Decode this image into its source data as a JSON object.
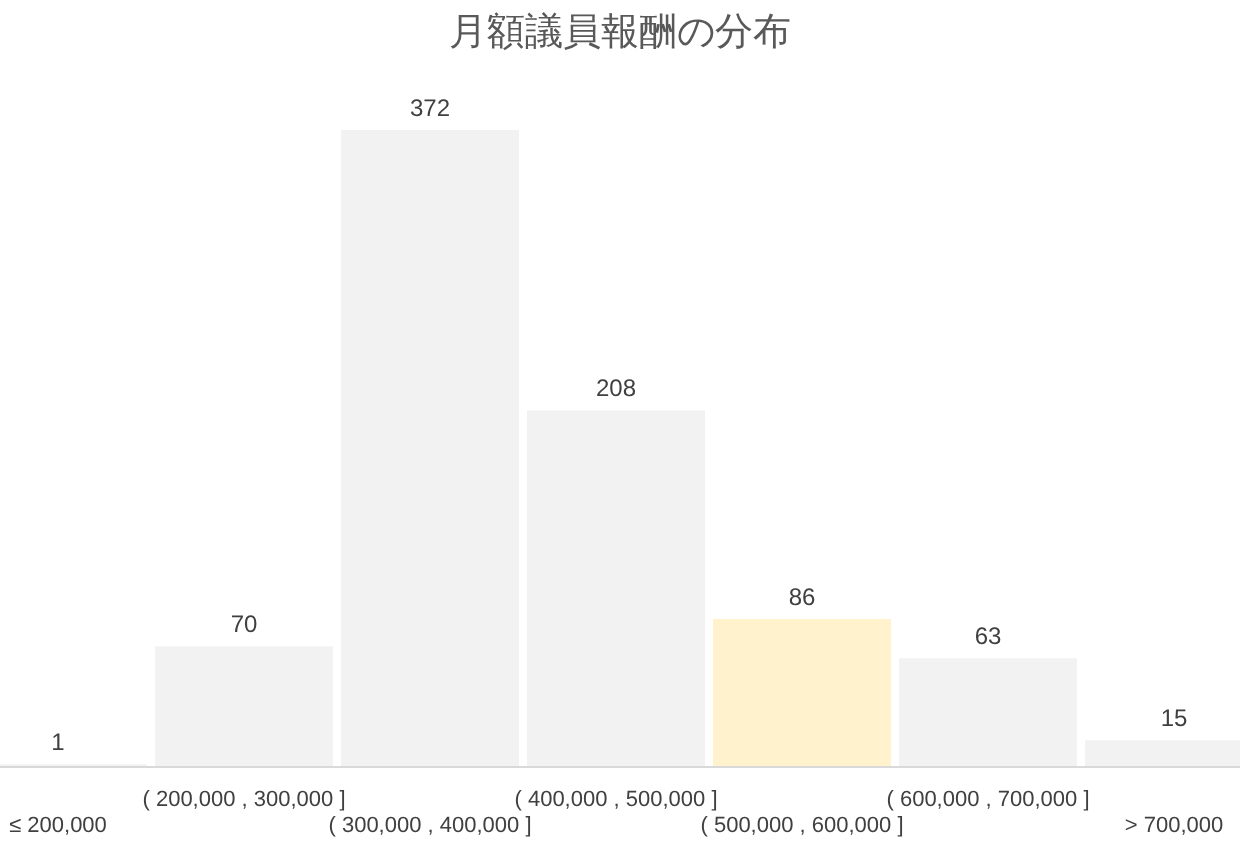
{
  "chart_data": {
    "type": "bar",
    "title": "月額議員報酬の分布",
    "categories": [
      "≤ 200,000",
      "( 200,000 ,  300,000 ]",
      "( 300,000 ,  400,000 ]",
      "( 400,000 ,  500,000 ]",
      "( 500,000 ,  600,000 ]",
      "( 600,000 ,  700,000 ]",
      "> 700,000"
    ],
    "values": [
      1,
      70,
      372,
      208,
      86,
      63,
      15
    ],
    "colors": [
      "#f2f2f2",
      "#f2f2f2",
      "#f2f2f2",
      "#f2f2f2",
      "#fff2cc",
      "#f2f2f2",
      "#f2f2f2"
    ],
    "data_labels": true
  }
}
